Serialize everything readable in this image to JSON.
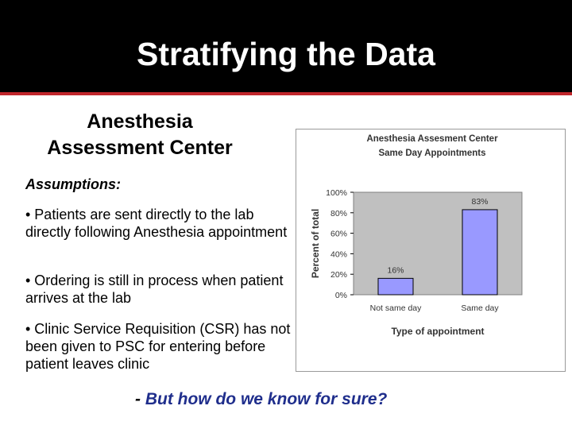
{
  "slide": {
    "title": "Stratifying the Data",
    "subtitle_line1": "Anesthesia",
    "subtitle_line2": "Assessment Center",
    "assumptions_label": "Assumptions:",
    "bullets": [
      "• Patients are sent directly to the lab directly following Anesthesia appointment",
      "• Ordering is still in process when patient arrives at the lab",
      "• Clinic Service Requisition (CSR) has not been given to PSC for entering before patient leaves clinic"
    ],
    "question_prefix": "- ",
    "question": "But how do we know for sure?"
  },
  "colors": {
    "header_bg": "#000000",
    "accent_line": "#c0262b",
    "question_text": "#1f2e8c",
    "bar_fill": "#9999ff",
    "plot_bg": "#c0c0c0"
  },
  "chart_data": {
    "type": "bar",
    "title_line1": "Anesthesia Assesment Center",
    "title_line2": "Same Day Appointments",
    "categories": [
      "Not same day",
      "Same day"
    ],
    "values": [
      16,
      83
    ],
    "data_labels": [
      "16%",
      "83%"
    ],
    "xlabel": "Type of appointment",
    "ylabel": "Percent of total",
    "ylim": [
      0,
      100
    ],
    "yticks": [
      "0%",
      "20%",
      "40%",
      "60%",
      "80%",
      "100%"
    ],
    "grid": false,
    "legend": "none"
  }
}
